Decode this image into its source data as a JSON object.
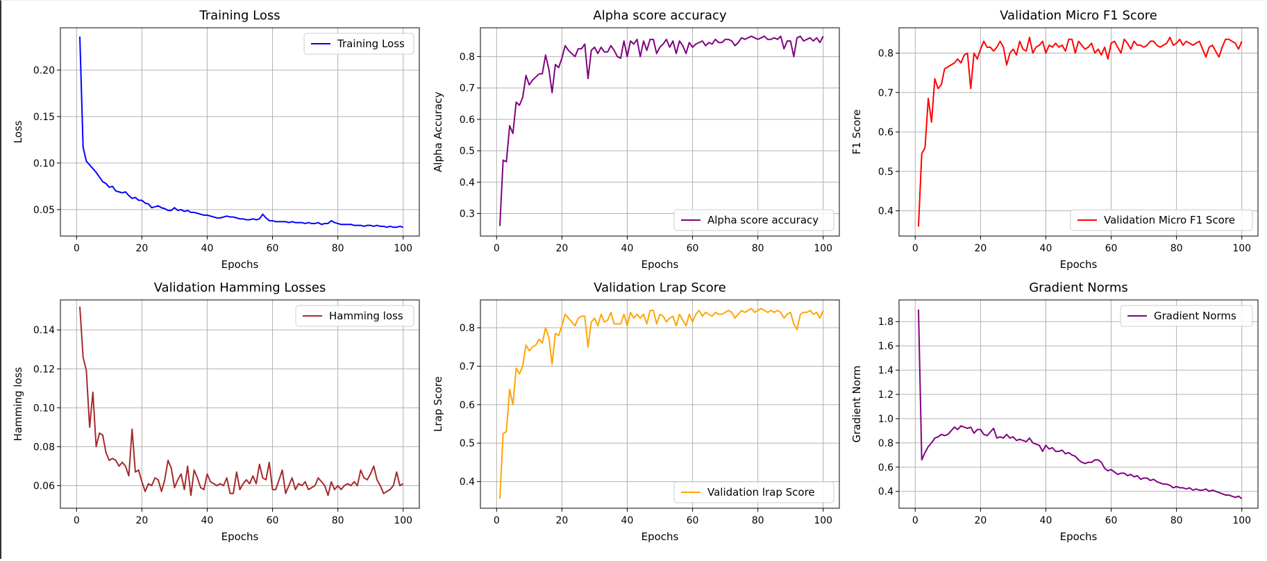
{
  "chart_data": [
    {
      "type": "line",
      "title": "Training Loss",
      "xlabel": "Epochs",
      "ylabel": "Loss",
      "xlim": [
        -4.95,
        104.95
      ],
      "ylim": [
        0.0215,
        0.2455
      ],
      "xticks": [
        0,
        20,
        40,
        60,
        80,
        100
      ],
      "yticks": [
        0.05,
        0.1,
        0.15,
        0.2
      ],
      "ytick_labels": [
        "0.05",
        "0.10",
        "0.15",
        "0.20"
      ],
      "grid": true,
      "legend_loc": "top-right",
      "series": [
        {
          "name": "Training Loss",
          "color": "#0000ff",
          "values": [
            0.236,
            0.117,
            0.102,
            0.098,
            0.094,
            0.09,
            0.085,
            0.08,
            0.078,
            0.074,
            0.075,
            0.07,
            0.069,
            0.068,
            0.069,
            0.065,
            0.062,
            0.063,
            0.06,
            0.06,
            0.057,
            0.056,
            0.052,
            0.053,
            0.054,
            0.052,
            0.051,
            0.049,
            0.049,
            0.052,
            0.049,
            0.05,
            0.048,
            0.049,
            0.047,
            0.047,
            0.046,
            0.045,
            0.044,
            0.044,
            0.043,
            0.042,
            0.041,
            0.041,
            0.042,
            0.043,
            0.042,
            0.042,
            0.041,
            0.04,
            0.04,
            0.039,
            0.039,
            0.04,
            0.039,
            0.04,
            0.045,
            0.041,
            0.038,
            0.038,
            0.037,
            0.037,
            0.037,
            0.037,
            0.036,
            0.037,
            0.036,
            0.036,
            0.036,
            0.035,
            0.036,
            0.035,
            0.035,
            0.036,
            0.034,
            0.035,
            0.035,
            0.038,
            0.036,
            0.035,
            0.034,
            0.034,
            0.034,
            0.034,
            0.033,
            0.033,
            0.033,
            0.032,
            0.033,
            0.033,
            0.032,
            0.033,
            0.032,
            0.032,
            0.031,
            0.032,
            0.031,
            0.031,
            0.032,
            0.031
          ]
        }
      ]
    },
    {
      "type": "line",
      "title": "Alpha score accuracy",
      "xlabel": "Epochs",
      "ylabel": "Alpha Accuracy",
      "xlim": [
        -4.95,
        104.95
      ],
      "ylim": [
        0.228,
        0.892
      ],
      "xticks": [
        0,
        20,
        40,
        60,
        80,
        100
      ],
      "yticks": [
        0.3,
        0.4,
        0.5,
        0.6,
        0.7,
        0.8
      ],
      "ytick_labels": [
        "0.3",
        "0.4",
        "0.5",
        "0.6",
        "0.7",
        "0.8"
      ],
      "grid": true,
      "legend_loc": "bottom-right",
      "series": [
        {
          "name": "Alpha score accuracy",
          "color": "#800080",
          "values": [
            0.26,
            0.47,
            0.465,
            0.58,
            0.555,
            0.655,
            0.645,
            0.67,
            0.74,
            0.71,
            0.725,
            0.735,
            0.745,
            0.745,
            0.805,
            0.76,
            0.685,
            0.775,
            0.765,
            0.795,
            0.835,
            0.82,
            0.81,
            0.8,
            0.825,
            0.825,
            0.84,
            0.73,
            0.82,
            0.83,
            0.81,
            0.83,
            0.815,
            0.815,
            0.835,
            0.82,
            0.8,
            0.795,
            0.85,
            0.8,
            0.85,
            0.84,
            0.855,
            0.8,
            0.85,
            0.82,
            0.855,
            0.855,
            0.81,
            0.83,
            0.84,
            0.855,
            0.83,
            0.85,
            0.81,
            0.85,
            0.835,
            0.81,
            0.845,
            0.83,
            0.84,
            0.845,
            0.85,
            0.835,
            0.845,
            0.84,
            0.855,
            0.845,
            0.845,
            0.855,
            0.855,
            0.85,
            0.835,
            0.845,
            0.86,
            0.855,
            0.86,
            0.865,
            0.86,
            0.855,
            0.86,
            0.865,
            0.855,
            0.855,
            0.86,
            0.855,
            0.865,
            0.825,
            0.85,
            0.85,
            0.8,
            0.86,
            0.865,
            0.85,
            0.855,
            0.86,
            0.85,
            0.86,
            0.845,
            0.865
          ]
        }
      ]
    },
    {
      "type": "line",
      "title": "Validation Micro F1 Score",
      "xlabel": "Epochs",
      "ylabel": "F1 Score",
      "xlim": [
        -4.95,
        104.95
      ],
      "ylim": [
        0.336,
        0.8642
      ],
      "xticks": [
        0,
        20,
        40,
        60,
        80,
        100
      ],
      "yticks": [
        0.4,
        0.5,
        0.6,
        0.7,
        0.8
      ],
      "ytick_labels": [
        "0.4",
        "0.5",
        "0.6",
        "0.7",
        "0.8"
      ],
      "grid": true,
      "legend_loc": "bottom-right",
      "series": [
        {
          "name": "Validation Micro F1 Score",
          "color": "#ff0000",
          "values": [
            0.36,
            0.545,
            0.56,
            0.685,
            0.625,
            0.735,
            0.71,
            0.72,
            0.76,
            0.765,
            0.77,
            0.775,
            0.785,
            0.775,
            0.795,
            0.8,
            0.71,
            0.8,
            0.785,
            0.81,
            0.83,
            0.815,
            0.815,
            0.805,
            0.815,
            0.83,
            0.815,
            0.77,
            0.8,
            0.81,
            0.795,
            0.83,
            0.81,
            0.805,
            0.84,
            0.8,
            0.815,
            0.82,
            0.83,
            0.8,
            0.82,
            0.815,
            0.825,
            0.815,
            0.82,
            0.805,
            0.835,
            0.835,
            0.8,
            0.83,
            0.82,
            0.81,
            0.815,
            0.825,
            0.8,
            0.81,
            0.795,
            0.815,
            0.785,
            0.825,
            0.83,
            0.815,
            0.8,
            0.835,
            0.825,
            0.81,
            0.83,
            0.82,
            0.82,
            0.815,
            0.82,
            0.83,
            0.83,
            0.82,
            0.815,
            0.82,
            0.825,
            0.84,
            0.82,
            0.825,
            0.835,
            0.82,
            0.83,
            0.825,
            0.82,
            0.825,
            0.83,
            0.81,
            0.79,
            0.815,
            0.82,
            0.805,
            0.79,
            0.815,
            0.835,
            0.835,
            0.83,
            0.825,
            0.81,
            0.83
          ]
        }
      ]
    },
    {
      "type": "line",
      "title": "Validation Hamming Losses",
      "xlabel": "Epochs",
      "ylabel": "Hamming loss",
      "xlim": [
        -4.95,
        104.95
      ],
      "ylim": [
        0.0484,
        0.1554
      ],
      "xticks": [
        0,
        20,
        40,
        60,
        80,
        100
      ],
      "yticks": [
        0.06,
        0.08,
        0.1,
        0.12,
        0.14
      ],
      "ytick_labels": [
        "0.06",
        "0.08",
        "0.10",
        "0.12",
        "0.14"
      ],
      "grid": true,
      "legend_loc": "top-right",
      "series": [
        {
          "name": "Hamming loss",
          "color": "#a52a2a",
          "values": [
            0.152,
            0.126,
            0.119,
            0.09,
            0.108,
            0.08,
            0.087,
            0.086,
            0.077,
            0.073,
            0.074,
            0.073,
            0.07,
            0.072,
            0.07,
            0.065,
            0.089,
            0.067,
            0.068,
            0.062,
            0.057,
            0.061,
            0.06,
            0.064,
            0.063,
            0.057,
            0.063,
            0.073,
            0.069,
            0.059,
            0.063,
            0.066,
            0.058,
            0.07,
            0.055,
            0.068,
            0.064,
            0.059,
            0.058,
            0.066,
            0.062,
            0.061,
            0.06,
            0.061,
            0.06,
            0.064,
            0.056,
            0.056,
            0.067,
            0.058,
            0.061,
            0.063,
            0.061,
            0.065,
            0.061,
            0.071,
            0.064,
            0.063,
            0.072,
            0.058,
            0.058,
            0.063,
            0.068,
            0.056,
            0.06,
            0.064,
            0.058,
            0.061,
            0.06,
            0.062,
            0.058,
            0.059,
            0.06,
            0.064,
            0.062,
            0.06,
            0.055,
            0.062,
            0.058,
            0.06,
            0.058,
            0.06,
            0.061,
            0.06,
            0.062,
            0.06,
            0.068,
            0.064,
            0.063,
            0.066,
            0.07,
            0.063,
            0.06,
            0.056,
            0.057,
            0.058,
            0.06,
            0.067,
            0.06,
            0.061
          ]
        }
      ]
    },
    {
      "type": "line",
      "title": "Validation Lrap Score",
      "xlabel": "Epochs",
      "ylabel": "Lrap Score",
      "xlim": [
        -4.95,
        104.95
      ],
      "ylim": [
        0.3307,
        0.8723
      ],
      "xticks": [
        0,
        20,
        40,
        60,
        80,
        100
      ],
      "yticks": [
        0.4,
        0.5,
        0.6,
        0.7,
        0.8
      ],
      "ytick_labels": [
        "0.4",
        "0.5",
        "0.6",
        "0.7",
        "0.8"
      ],
      "grid": true,
      "legend_loc": "bottom-right",
      "series": [
        {
          "name": "Validation lrap Score",
          "color": "#ffa500",
          "values": [
            0.355,
            0.525,
            0.53,
            0.64,
            0.6,
            0.695,
            0.68,
            0.7,
            0.755,
            0.74,
            0.75,
            0.755,
            0.77,
            0.76,
            0.8,
            0.775,
            0.705,
            0.785,
            0.78,
            0.805,
            0.835,
            0.825,
            0.815,
            0.805,
            0.825,
            0.83,
            0.83,
            0.75,
            0.815,
            0.825,
            0.805,
            0.835,
            0.815,
            0.82,
            0.84,
            0.81,
            0.81,
            0.81,
            0.835,
            0.805,
            0.84,
            0.825,
            0.835,
            0.825,
            0.835,
            0.81,
            0.845,
            0.845,
            0.81,
            0.835,
            0.83,
            0.815,
            0.825,
            0.83,
            0.805,
            0.835,
            0.82,
            0.805,
            0.835,
            0.815,
            0.835,
            0.845,
            0.83,
            0.84,
            0.835,
            0.83,
            0.84,
            0.835,
            0.835,
            0.84,
            0.845,
            0.84,
            0.825,
            0.835,
            0.845,
            0.84,
            0.845,
            0.85,
            0.84,
            0.845,
            0.85,
            0.845,
            0.84,
            0.845,
            0.84,
            0.845,
            0.84,
            0.825,
            0.835,
            0.84,
            0.81,
            0.795,
            0.835,
            0.84,
            0.84,
            0.845,
            0.835,
            0.84,
            0.825,
            0.845
          ]
        }
      ]
    },
    {
      "type": "line",
      "title": "Gradient Norms",
      "xlabel": "Epochs",
      "ylabel": "Gradient Norm",
      "xlim": [
        -4.95,
        104.95
      ],
      "ylim": [
        0.2611,
        1.9789
      ],
      "xticks": [
        0,
        20,
        40,
        60,
        80,
        100
      ],
      "yticks": [
        0.4,
        0.6,
        0.8,
        1.0,
        1.2,
        1.4,
        1.6,
        1.8
      ],
      "ytick_labels": [
        "0.4",
        "0.6",
        "0.8",
        "1.0",
        "1.2",
        "1.4",
        "1.6",
        "1.8"
      ],
      "grid": true,
      "legend_loc": "top-right",
      "series": [
        {
          "name": "Gradient Norms",
          "color": "#800080",
          "values": [
            1.9,
            0.66,
            0.72,
            0.77,
            0.8,
            0.84,
            0.85,
            0.87,
            0.86,
            0.87,
            0.9,
            0.93,
            0.91,
            0.94,
            0.93,
            0.92,
            0.93,
            0.88,
            0.91,
            0.91,
            0.87,
            0.86,
            0.89,
            0.92,
            0.84,
            0.85,
            0.84,
            0.87,
            0.84,
            0.85,
            0.82,
            0.83,
            0.82,
            0.81,
            0.84,
            0.8,
            0.79,
            0.78,
            0.73,
            0.78,
            0.75,
            0.76,
            0.73,
            0.73,
            0.74,
            0.71,
            0.72,
            0.7,
            0.69,
            0.66,
            0.64,
            0.63,
            0.64,
            0.64,
            0.66,
            0.66,
            0.64,
            0.59,
            0.57,
            0.58,
            0.56,
            0.54,
            0.55,
            0.55,
            0.53,
            0.54,
            0.52,
            0.53,
            0.5,
            0.51,
            0.51,
            0.49,
            0.5,
            0.48,
            0.47,
            0.46,
            0.46,
            0.45,
            0.43,
            0.44,
            0.43,
            0.43,
            0.42,
            0.43,
            0.41,
            0.42,
            0.41,
            0.41,
            0.42,
            0.4,
            0.41,
            0.4,
            0.39,
            0.38,
            0.37,
            0.37,
            0.36,
            0.35,
            0.36,
            0.34
          ]
        }
      ]
    }
  ]
}
